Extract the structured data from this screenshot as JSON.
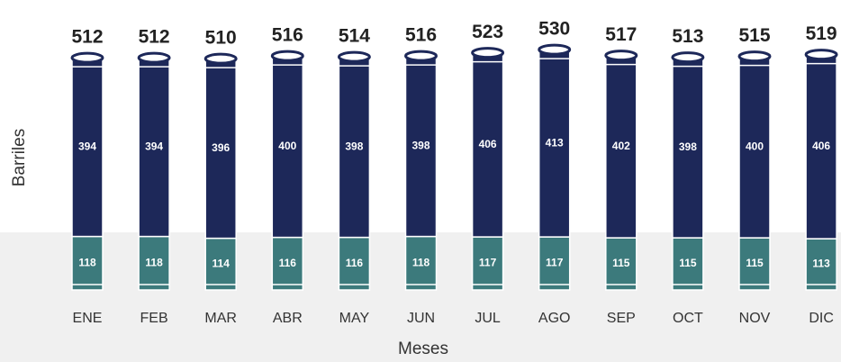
{
  "chart_data": {
    "type": "stacked-bar",
    "x_label": "Meses",
    "y_label": "Barriles",
    "categories": [
      "ENE",
      "FEB",
      "MAR",
      "ABR",
      "MAY",
      "JUN",
      "JUL",
      "AGO",
      "SEP",
      "OCT",
      "NOV",
      "DIC"
    ],
    "series": [
      {
        "color": "#3c7a7c",
        "values": [
          118,
          118,
          114,
          116,
          116,
          118,
          117,
          117,
          115,
          115,
          115,
          113
        ]
      },
      {
        "color": "#1d2859",
        "values": [
          394,
          394,
          396,
          400,
          398,
          398,
          406,
          413,
          402,
          398,
          400,
          406
        ]
      }
    ],
    "totals": [
      512,
      512,
      510,
      516,
      514,
      516,
      523,
      530,
      517,
      513,
      515,
      519
    ],
    "ylim": [
      0,
      560
    ]
  }
}
